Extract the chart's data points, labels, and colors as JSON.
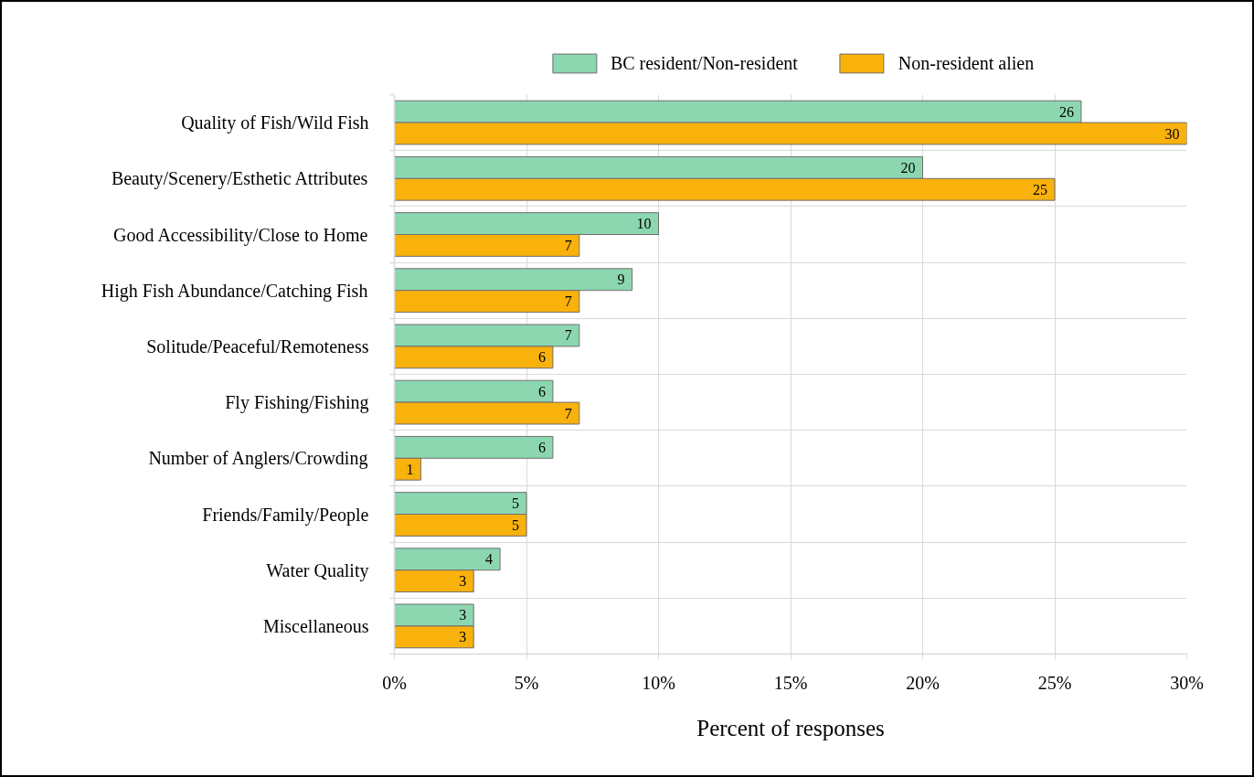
{
  "chart_data": {
    "type": "bar",
    "orientation": "horizontal",
    "categories": [
      "Quality of Fish/Wild Fish",
      "Beauty/Scenery/Esthetic Attributes",
      "Good Accessibility/Close to Home",
      "High Fish Abundance/Catching Fish",
      "Solitude/Peaceful/Remoteness",
      "Fly Fishing/Fishing",
      "Number of Anglers/Crowding",
      "Friends/Family/People",
      "Water Quality",
      "Miscellaneous"
    ],
    "series": [
      {
        "name": "BC resident/Non-resident",
        "color": "#8cd7b0",
        "values": [
          26,
          20,
          10,
          9,
          7,
          6,
          6,
          5,
          4,
          3
        ]
      },
      {
        "name": "Non-resident alien",
        "color": "#f9b10c",
        "values": [
          30,
          25,
          7,
          7,
          6,
          7,
          1,
          5,
          3,
          3
        ]
      }
    ],
    "xlim": [
      0,
      30
    ],
    "xticks": [
      {
        "value": 0,
        "label": "0%"
      },
      {
        "value": 5,
        "label": "5%"
      },
      {
        "value": 10,
        "label": "10%"
      },
      {
        "value": 15,
        "label": "15%"
      },
      {
        "value": 20,
        "label": "20%"
      },
      {
        "value": 25,
        "label": "25%"
      },
      {
        "value": 30,
        "label": "30%"
      }
    ],
    "xlabel": "Percent of responses",
    "grid": true,
    "legend": "top",
    "data_labels": true
  }
}
